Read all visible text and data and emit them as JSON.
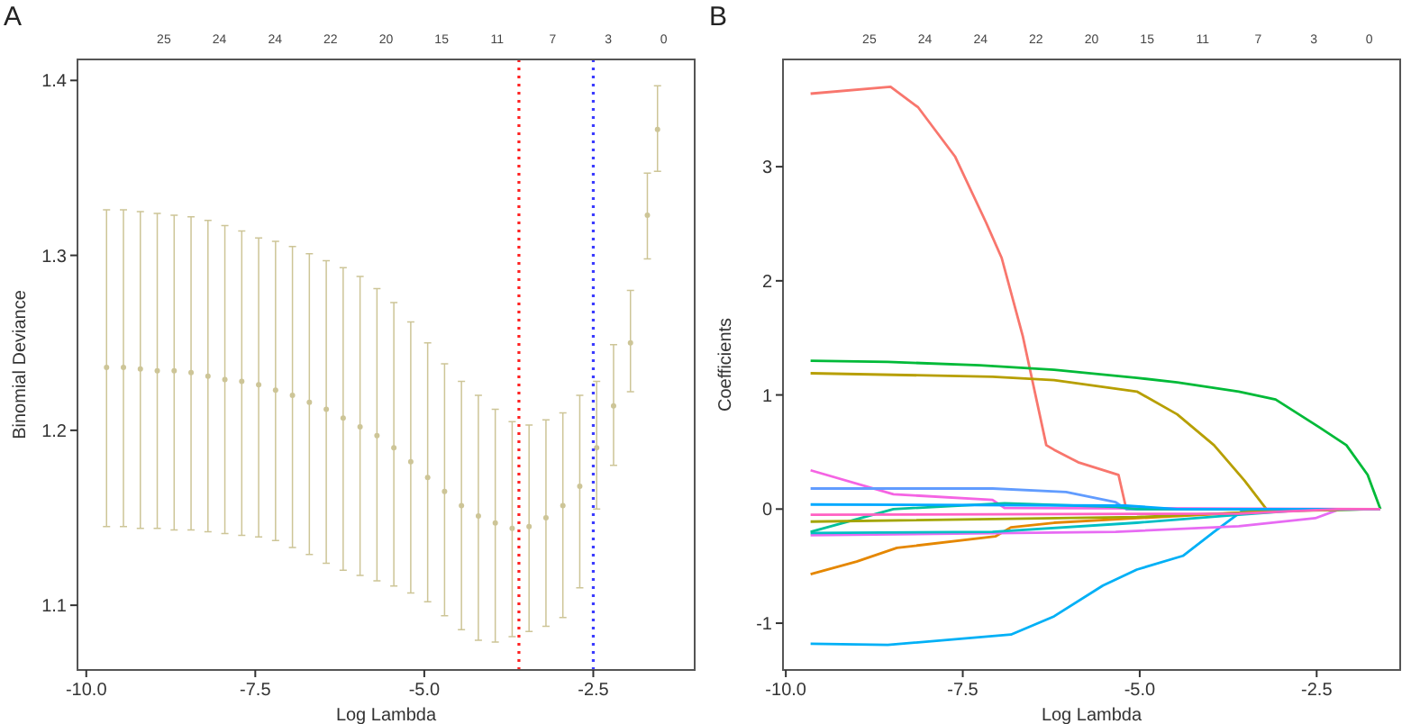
{
  "chart_data": [
    {
      "type": "scatter",
      "title": "A",
      "xlabel": "Log Lambda",
      "ylabel": "Binomial Deviance",
      "color": "#cdc597",
      "marker": "circle",
      "x": [
        -9.7,
        -9.45,
        -9.2,
        -8.95,
        -8.7,
        -8.45,
        -8.2,
        -7.95,
        -7.7,
        -7.45,
        -7.2,
        -6.95,
        -6.7,
        -6.45,
        -6.2,
        -5.95,
        -5.7,
        -5.45,
        -5.2,
        -4.95,
        -4.7,
        -4.45,
        -4.2,
        -3.95,
        -3.7,
        -3.45,
        -3.2,
        -2.95,
        -2.7,
        -2.45,
        -2.2,
        -1.95,
        -1.7,
        -1.55
      ],
      "values": [
        1.236,
        1.236,
        1.235,
        1.234,
        1.234,
        1.233,
        1.231,
        1.229,
        1.228,
        1.226,
        1.223,
        1.22,
        1.216,
        1.212,
        1.207,
        1.202,
        1.197,
        1.19,
        1.182,
        1.173,
        1.165,
        1.157,
        1.151,
        1.147,
        1.144,
        1.145,
        1.15,
        1.157,
        1.168,
        1.19,
        1.214,
        1.25,
        1.323,
        1.372
      ],
      "errors": [
        [
          1.145,
          1.326
        ],
        [
          1.145,
          1.326
        ],
        [
          1.144,
          1.325
        ],
        [
          1.144,
          1.324
        ],
        [
          1.143,
          1.323
        ],
        [
          1.143,
          1.322
        ],
        [
          1.142,
          1.32
        ],
        [
          1.141,
          1.317
        ],
        [
          1.14,
          1.314
        ],
        [
          1.139,
          1.31
        ],
        [
          1.137,
          1.308
        ],
        [
          1.133,
          1.305
        ],
        [
          1.129,
          1.301
        ],
        [
          1.124,
          1.297
        ],
        [
          1.12,
          1.293
        ],
        [
          1.117,
          1.288
        ],
        [
          1.114,
          1.281
        ],
        [
          1.111,
          1.273
        ],
        [
          1.107,
          1.262
        ],
        [
          1.102,
          1.25
        ],
        [
          1.094,
          1.238
        ],
        [
          1.086,
          1.228
        ],
        [
          1.08,
          1.22
        ],
        [
          1.079,
          1.212
        ],
        [
          1.082,
          1.205
        ],
        [
          1.085,
          1.203
        ],
        [
          1.088,
          1.206
        ],
        [
          1.093,
          1.21
        ],
        [
          1.11,
          1.22
        ],
        [
          1.155,
          1.228
        ],
        [
          1.18,
          1.249
        ],
        [
          1.222,
          1.28
        ],
        [
          1.298,
          1.347
        ],
        [
          1.348,
          1.397
        ]
      ],
      "xlim": [
        -10.13,
        -1.0
      ],
      "ylim": [
        1.063,
        1.412
      ],
      "xticks": [
        {
          "value": -10,
          "label": "-10.0"
        },
        {
          "value": -7.5,
          "label": "-7.5"
        },
        {
          "value": -5,
          "label": "-5.0"
        },
        {
          "value": -2.5,
          "label": "-2.5"
        }
      ],
      "yticks": [
        1.1,
        1.2,
        1.3,
        1.4
      ],
      "annotations": [
        "25",
        "24",
        "24",
        "22",
        "20",
        "15",
        "11",
        "7",
        "3",
        "0"
      ],
      "ref_lines": [
        {
          "axis": "x",
          "value": -3.6,
          "color": "#ff2020",
          "line_style": "dotted"
        },
        {
          "axis": "x",
          "value": -2.5,
          "color": "#3b3bff",
          "line_style": "dotted"
        }
      ]
    },
    {
      "type": "line",
      "title": "B",
      "xlabel": "Log Lambda",
      "ylabel": "Coefficients",
      "xlim": [
        -10.04,
        -1.32
      ],
      "ylim": [
        -1.41,
        3.94
      ],
      "xticks": [
        {
          "value": -10,
          "label": "-10.0"
        },
        -7.5,
        {
          "value": -5,
          "label": "-5.0"
        },
        -2.5
      ],
      "yticks": [
        -1,
        0,
        1,
        2,
        3
      ],
      "annotations": [
        "25",
        "24",
        "24",
        "22",
        "20",
        "15",
        "11",
        "7",
        "3",
        "0"
      ],
      "series": [
        {
          "color": "#f8766d",
          "x": [
            -9.65,
            -8.52,
            -8.13,
            -7.61,
            -7.17,
            -6.95,
            -6.65,
            -6.32,
            -6.21,
            -5.87,
            -5.3,
            -5.19,
            -1.6
          ],
          "values": [
            3.64,
            3.7,
            3.52,
            3.09,
            2.51,
            2.2,
            1.51,
            0.56,
            0.52,
            0.41,
            0.3,
            0,
            0
          ]
        },
        {
          "color": "#00ba38",
          "x": [
            -9.65,
            -8.56,
            -7.26,
            -6.21,
            -5.04,
            -4.47,
            -3.6,
            -3.08,
            -2.47,
            -2.08,
            -1.78,
            -1.6
          ],
          "values": [
            1.3,
            1.29,
            1.26,
            1.22,
            1.15,
            1.11,
            1.03,
            0.96,
            0.72,
            0.56,
            0.3,
            0
          ]
        },
        {
          "color": "#b79f00",
          "x": [
            -9.65,
            -7.08,
            -6.21,
            -5.04,
            -4.47,
            -3.95,
            -3.52,
            -3.21,
            -1.6
          ],
          "values": [
            1.19,
            1.16,
            1.13,
            1.03,
            0.83,
            0.56,
            0.25,
            0,
            0
          ]
        },
        {
          "color": "#00b0f6",
          "x": [
            -9.65,
            -8.56,
            -6.82,
            -6.21,
            -5.52,
            -5.04,
            -4.39,
            -3.95,
            -3.56,
            -1.6
          ],
          "values": [
            -1.18,
            -1.19,
            -1.1,
            -0.94,
            -0.67,
            -0.53,
            -0.41,
            -0.2,
            -0.02,
            0
          ]
        },
        {
          "color": "#e58700",
          "x": [
            -9.65,
            -9.0,
            -8.43,
            -7.04,
            -6.82,
            -6.21,
            -5.04,
            -3.21,
            -2.56,
            -1.6
          ],
          "values": [
            -0.57,
            -0.46,
            -0.34,
            -0.24,
            -0.16,
            -0.12,
            -0.08,
            -0.02,
            0,
            0
          ]
        },
        {
          "color": "#f564e3",
          "x": [
            -9.65,
            -8.48,
            -7.08,
            -6.91,
            -1.6
          ],
          "values": [
            0.34,
            0.13,
            0.08,
            0.01,
            0
          ]
        },
        {
          "color": "#e76bf3",
          "x": [
            -9.65,
            -5.34,
            -3.6,
            -2.52,
            -2.17,
            -1.6
          ],
          "values": [
            -0.23,
            -0.2,
            -0.15,
            -0.08,
            0,
            0
          ]
        },
        {
          "color": "#619cff",
          "x": [
            -9.65,
            -7.08,
            -6.04,
            -5.34,
            -5.19,
            -1.6
          ],
          "values": [
            0.18,
            0.18,
            0.15,
            0.06,
            0,
            0
          ]
        },
        {
          "color": "#00bfc4",
          "x": [
            -9.65,
            -7.08,
            -5.04,
            -3.6,
            -2.73,
            -1.6
          ],
          "values": [
            -0.21,
            -0.2,
            -0.12,
            -0.05,
            -0.01,
            0
          ]
        },
        {
          "color": "#00c19a",
          "x": [
            -9.65,
            -8.48,
            -6.91,
            -5.34,
            -5.04,
            -1.6
          ],
          "values": [
            -0.2,
            0,
            0.05,
            0.02,
            0,
            0
          ]
        },
        {
          "color": "#a3a500",
          "x": [
            -9.65,
            -5.04,
            -3.17,
            -1.6
          ],
          "values": [
            -0.11,
            -0.07,
            -0.02,
            0
          ]
        },
        {
          "color": "#00a9ff",
          "x": [
            -9.65,
            -5.2,
            -4.47,
            -1.6
          ],
          "values": [
            0.04,
            0.03,
            0,
            0
          ]
        },
        {
          "color": "#ff61c3",
          "x": [
            -9.65,
            -3.6,
            -2.2,
            -1.6
          ],
          "values": [
            -0.05,
            -0.04,
            0,
            0
          ]
        }
      ]
    }
  ]
}
